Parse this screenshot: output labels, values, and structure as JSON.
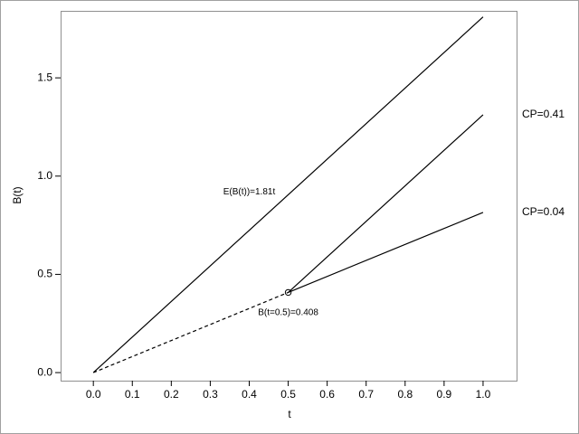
{
  "chart_data": {
    "type": "line",
    "xlabel": "t",
    "ylabel": "B(t)",
    "xlim": [
      -0.084,
      1.086
    ],
    "ylim": [
      -0.041,
      1.841
    ],
    "xticks": [
      {
        "value": 0,
        "label": "0.0"
      },
      0.1,
      0.2,
      0.3,
      0.4,
      0.5,
      0.6,
      0.7,
      0.8,
      0.9,
      {
        "value": 1,
        "label": "1.0"
      }
    ],
    "yticks": [
      {
        "value": 0,
        "label": "0.0"
      },
      0.5,
      {
        "value": 1,
        "label": "1.0"
      },
      1.5
    ],
    "grid": false,
    "series": [
      {
        "color": "#000000",
        "dash": false,
        "x": [
          0,
          1
        ],
        "values": [
          0,
          1.81
        ]
      },
      {
        "color": "#000000",
        "dash": true,
        "x": [
          0,
          0.5
        ],
        "values": [
          0,
          0.408
        ]
      },
      {
        "color": "#000000",
        "dash": false,
        "x": [
          0.5,
          1
        ],
        "values": [
          0.408,
          1.312
        ],
        "end_label": "CP=0.41"
      },
      {
        "color": "#000000",
        "dash": false,
        "x": [
          0.5,
          1
        ],
        "values": [
          0.408,
          0.815
        ],
        "end_label": "CP=0.04"
      }
    ],
    "points": [
      {
        "x": 0.5,
        "y": 0.408
      }
    ],
    "annotations": [
      {
        "text": "E(B(t))=1.81t",
        "x": 0.4,
        "y": 0.92
      },
      {
        "text": "B(t=0.5)=0.408",
        "x": 0.5,
        "y": 0.305
      }
    ]
  }
}
